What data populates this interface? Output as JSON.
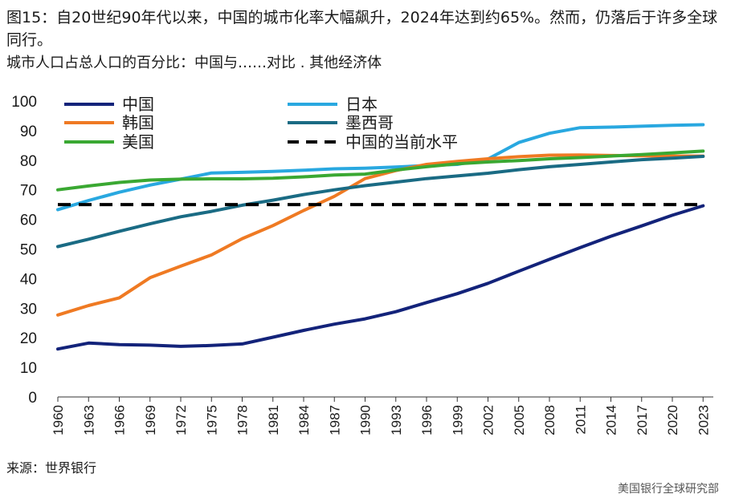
{
  "header": {
    "title": "图15：自20世纪90年代以来，中国的城市化率大幅飙升，2024年达到约65%。然而，仍落后于许多全球同行。",
    "subtitle": "城市人口占总人口的百分比：中国与……对比   . 其他经济体"
  },
  "footer": {
    "source": "来源：世界银行",
    "brand": "美国银行全球研究部"
  },
  "chart_data": {
    "type": "line",
    "title": "城市人口占总人口的百分比",
    "xlabel": "",
    "ylabel": "",
    "ylim": [
      0,
      100
    ],
    "yticks": [
      0,
      10,
      20,
      30,
      40,
      50,
      60,
      70,
      80,
      90,
      100
    ],
    "x": [
      1960,
      1963,
      1966,
      1969,
      1972,
      1975,
      1978,
      1981,
      1984,
      1987,
      1990,
      1993,
      1996,
      1999,
      2002,
      2005,
      2008,
      2011,
      2014,
      2017,
      2020,
      2023
    ],
    "xlim": [
      1960,
      2024
    ],
    "series": [
      {
        "name": "中国",
        "color": "#13237a",
        "dash": false,
        "values": [
          16.2,
          18.2,
          17.7,
          17.5,
          17.1,
          17.4,
          17.9,
          20.2,
          22.5,
          24.6,
          26.4,
          28.8,
          31.9,
          34.9,
          38.4,
          42.5,
          46.5,
          50.5,
          54.3,
          57.8,
          61.4,
          64.6
        ]
      },
      {
        "name": "日本",
        "color": "#29a8e0",
        "dash": false,
        "values": [
          63.3,
          66.4,
          69.2,
          71.6,
          73.6,
          75.7,
          75.9,
          76.2,
          76.6,
          77.1,
          77.3,
          77.7,
          78.2,
          78.6,
          80.4,
          86.0,
          89.1,
          91.0,
          91.2,
          91.5,
          91.8,
          92.0
        ]
      },
      {
        "name": "韩国",
        "color": "#ef7a23",
        "dash": false,
        "values": [
          27.7,
          30.9,
          33.5,
          40.3,
          44.2,
          48.0,
          53.5,
          57.9,
          63.0,
          67.8,
          73.8,
          76.5,
          78.6,
          79.6,
          80.5,
          81.2,
          81.7,
          81.8,
          81.6,
          81.5,
          81.4,
          81.4
        ]
      },
      {
        "name": "墨西哥",
        "color": "#1a6b84",
        "dash": false,
        "values": [
          50.8,
          53.3,
          56.0,
          58.5,
          60.9,
          62.7,
          64.8,
          66.5,
          68.4,
          70.0,
          71.4,
          72.6,
          73.8,
          74.7,
          75.6,
          76.8,
          77.8,
          78.6,
          79.4,
          80.2,
          80.7,
          81.3
        ]
      },
      {
        "name": "美国",
        "color": "#3aa832",
        "dash": false,
        "values": [
          70.0,
          71.3,
          72.5,
          73.3,
          73.6,
          73.7,
          73.7,
          73.9,
          74.4,
          75.0,
          75.3,
          76.7,
          77.8,
          78.8,
          79.4,
          79.9,
          80.5,
          80.9,
          81.4,
          81.9,
          82.5,
          83.1
        ]
      },
      {
        "name": "中国的当前水平",
        "color": "#000000",
        "dash": true,
        "values": [
          65,
          65,
          65,
          65,
          65,
          65,
          65,
          65,
          65,
          65,
          65,
          65,
          65,
          65,
          65,
          65,
          65,
          65,
          65,
          65,
          65,
          65
        ]
      }
    ]
  }
}
